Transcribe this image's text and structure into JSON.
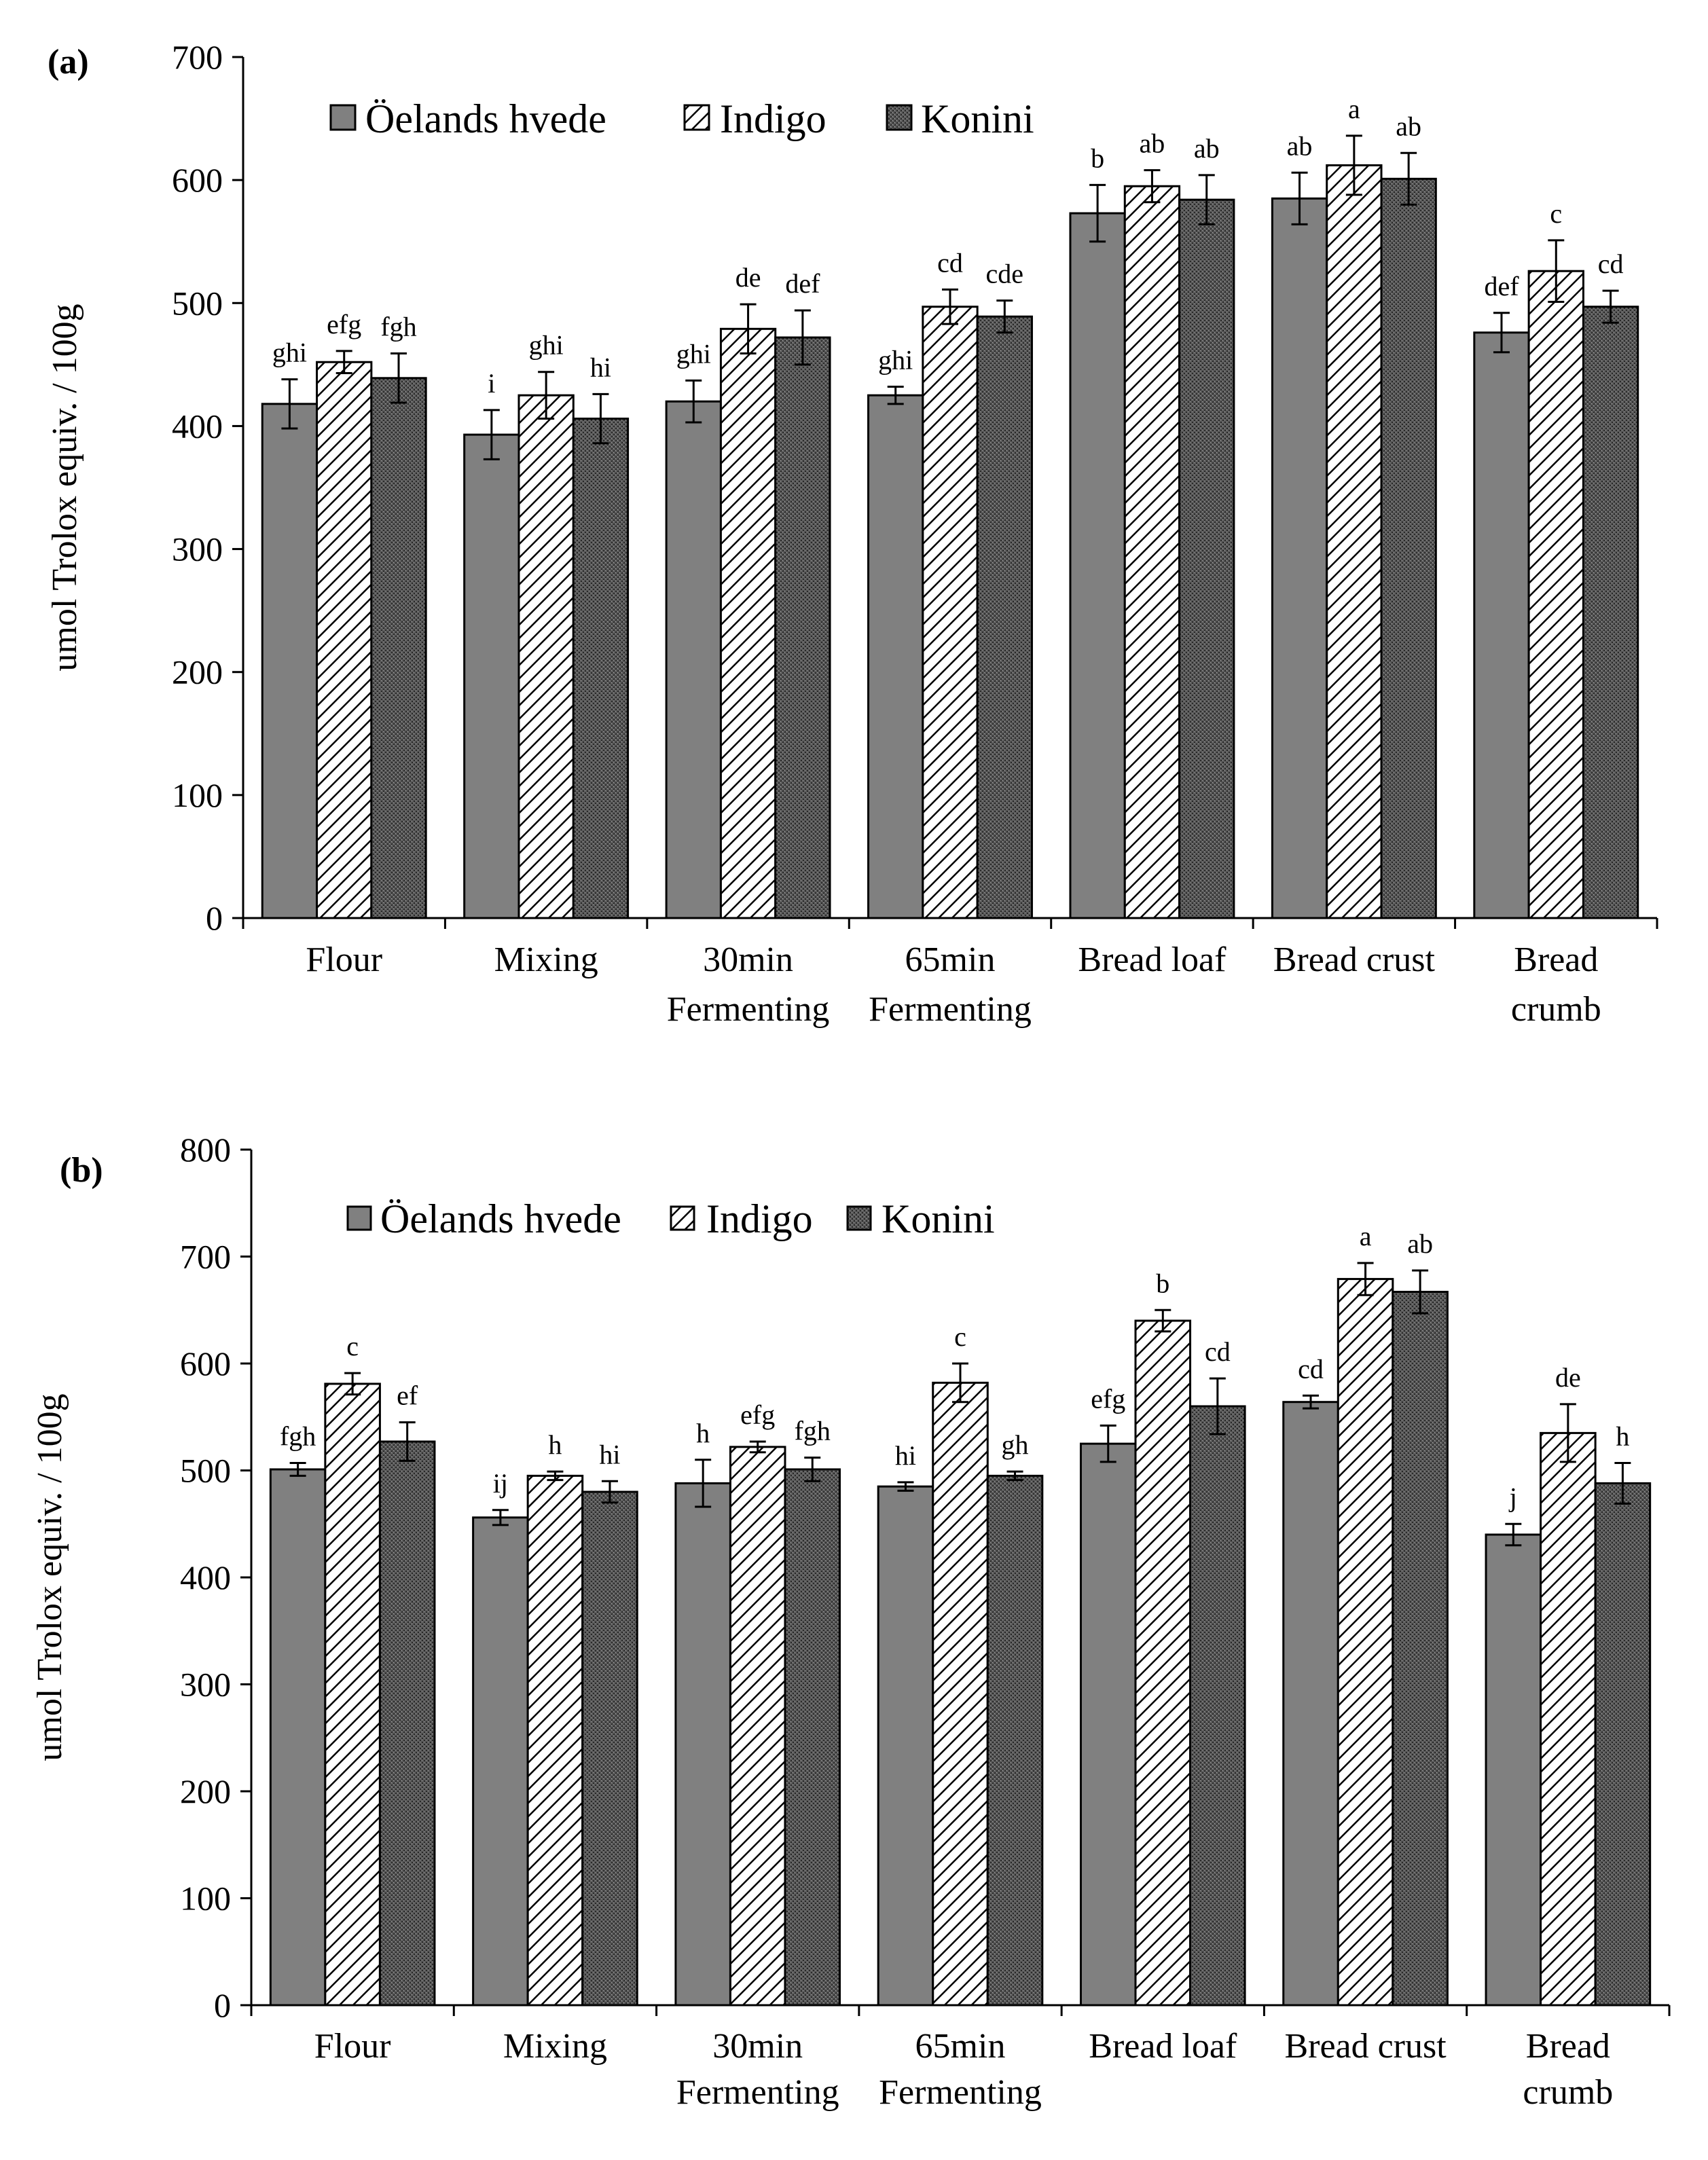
{
  "chart_data": [
    {
      "id": "a",
      "type": "bar",
      "panel_label": "(a)",
      "title": "",
      "xlabel": "",
      "ylabel": "umol Trolox equiv. / 100g",
      "ylim": [
        0,
        700
      ],
      "yticks": [
        0,
        100,
        200,
        300,
        400,
        500,
        600,
        700
      ],
      "grid": false,
      "legend_position": "top-left",
      "categories": [
        [
          "Flour"
        ],
        [
          "Mixing"
        ],
        [
          "30min",
          "Fermenting"
        ],
        [
          "65min",
          "Fermenting"
        ],
        [
          "Bread loaf"
        ],
        [
          "Bread crust"
        ],
        [
          "Bread",
          "crumb"
        ]
      ],
      "series": [
        {
          "name": "Öelands hvede",
          "pattern": "solid",
          "values": [
            418,
            393,
            420,
            425,
            573,
            585,
            476
          ],
          "errors": [
            20,
            20,
            17,
            7,
            23,
            21,
            16
          ],
          "labels": [
            "ghi",
            "i",
            "ghi",
            "ghi",
            "b",
            "ab",
            "def"
          ]
        },
        {
          "name": "Indigo",
          "pattern": "hatch",
          "values": [
            452,
            425,
            479,
            497,
            595,
            612,
            526
          ],
          "errors": [
            9,
            19,
            20,
            14,
            13,
            24,
            25
          ],
          "labels": [
            "efg",
            "ghi",
            "de",
            "cd",
            "ab",
            "a",
            "c"
          ]
        },
        {
          "name": "Konini",
          "pattern": "dots",
          "values": [
            439,
            406,
            472,
            489,
            584,
            601,
            497
          ],
          "errors": [
            20,
            20,
            22,
            13,
            20,
            21,
            13
          ],
          "labels": [
            "fgh",
            "hi",
            "def",
            "cde",
            "ab",
            "ab",
            "cd"
          ]
        }
      ]
    },
    {
      "id": "b",
      "type": "bar",
      "panel_label": "(b)",
      "title": "",
      "xlabel": "",
      "ylabel": "umol Trolox equiv. / 100g",
      "ylim": [
        0,
        800
      ],
      "yticks": [
        0,
        100,
        200,
        300,
        400,
        500,
        600,
        700,
        800
      ],
      "grid": false,
      "legend_position": "top-left",
      "categories": [
        [
          "Flour"
        ],
        [
          "Mixing"
        ],
        [
          "30min",
          "Fermenting"
        ],
        [
          "65min",
          "Fermenting"
        ],
        [
          "Bread loaf"
        ],
        [
          "Bread crust"
        ],
        [
          "Bread",
          "crumb"
        ]
      ],
      "series": [
        {
          "name": "Öelands hvede",
          "pattern": "solid",
          "values": [
            501,
            456,
            488,
            485,
            525,
            564,
            440
          ],
          "errors": [
            6,
            7,
            22,
            4,
            17,
            6,
            10
          ],
          "labels": [
            "fgh",
            "ij",
            "h",
            "hi",
            "efg",
            "cd",
            "j"
          ]
        },
        {
          "name": "Indigo",
          "pattern": "hatch",
          "values": [
            581,
            495,
            522,
            582,
            640,
            679,
            535
          ],
          "errors": [
            10,
            4,
            5,
            18,
            10,
            15,
            27
          ],
          "labels": [
            "c",
            "h",
            "efg",
            "c",
            "b",
            "a",
            "de"
          ]
        },
        {
          "name": "Konini",
          "pattern": "dots",
          "values": [
            527,
            480,
            501,
            495,
            560,
            667,
            488
          ],
          "errors": [
            18,
            10,
            11,
            4,
            26,
            20,
            19
          ],
          "labels": [
            "ef",
            "hi",
            "fgh",
            "gh",
            "cd",
            "ab",
            "h"
          ]
        }
      ]
    }
  ]
}
